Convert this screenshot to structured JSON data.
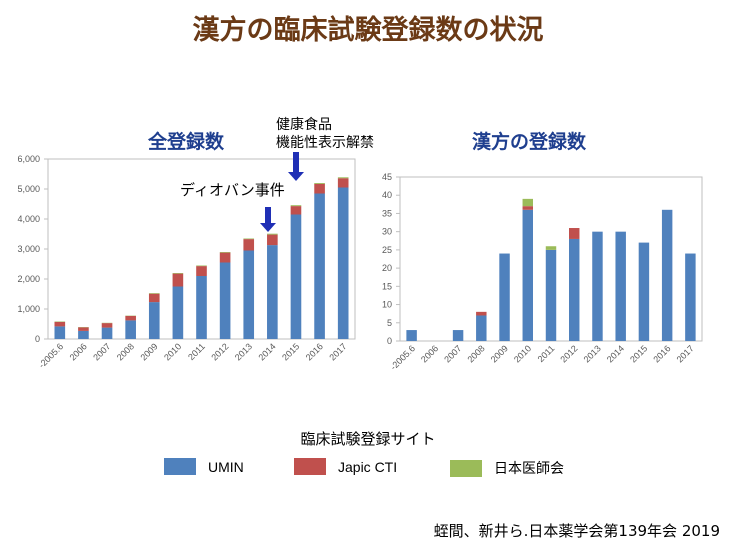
{
  "page_title": "漢方の臨床試験登録数の状況",
  "legend_title": "臨床試験登録サイト",
  "citation": "蛭間、新井ら.日本薬学会第139年会 2019",
  "annotations": {
    "health_food_line1": "健康食品",
    "health_food_line2": "機能性表示解禁",
    "diovan": "ディオバン事件"
  },
  "colors": {
    "UMIN": "#4f81bd",
    "Japic CTI": "#c0504d",
    "日本医師会": "#9bbb59",
    "axis": "#bfbfbf",
    "arrow": "#1f2fb5"
  },
  "legend": [
    {
      "name": "UMIN",
      "color": "#4f81bd"
    },
    {
      "name": "Japic CTI",
      "color": "#c0504d"
    },
    {
      "name": "日本医師会",
      "color": "#9bbb59"
    }
  ],
  "chart_data": [
    {
      "type": "bar",
      "stacked": true,
      "title": "全登録数",
      "categories": [
        "-2005.6",
        "2006",
        "2007",
        "2008",
        "2009",
        "2010",
        "2011",
        "2012",
        "2013",
        "2014",
        "2015",
        "2016",
        "2017"
      ],
      "ylim": [
        0,
        6000
      ],
      "yticks": [
        0,
        1000,
        2000,
        3000,
        4000,
        5000,
        6000
      ],
      "ytick_labels": [
        "0",
        "1,000",
        "2,000",
        "3,000",
        "4,000",
        "5,000",
        "6,000"
      ],
      "series": [
        {
          "name": "UMIN",
          "values": [
            420,
            270,
            380,
            620,
            1230,
            1750,
            2100,
            2550,
            2950,
            3130,
            4150,
            4850,
            5050
          ]
        },
        {
          "name": "Japic CTI",
          "values": [
            150,
            120,
            150,
            150,
            280,
            430,
            330,
            330,
            380,
            350,
            280,
            320,
            310
          ]
        },
        {
          "name": "日本医師会",
          "values": [
            15,
            10,
            10,
            10,
            20,
            20,
            20,
            20,
            20,
            30,
            30,
            30,
            30
          ]
        }
      ]
    },
    {
      "type": "bar",
      "stacked": true,
      "title": "漢方の登録数",
      "categories": [
        "-2005.6",
        "2006",
        "2007",
        "2008",
        "2009",
        "2010",
        "2011",
        "2012",
        "2013",
        "2014",
        "2015",
        "2016",
        "2017"
      ],
      "ylim": [
        0,
        45
      ],
      "yticks": [
        0,
        5,
        10,
        15,
        20,
        25,
        30,
        35,
        40,
        45
      ],
      "ytick_labels": [
        "0",
        "5",
        "10",
        "15",
        "20",
        "25",
        "30",
        "35",
        "40",
        "45"
      ],
      "series": [
        {
          "name": "UMIN",
          "values": [
            3,
            0,
            3,
            7,
            24,
            36,
            25,
            28,
            30,
            30,
            27,
            36,
            24
          ]
        },
        {
          "name": "Japic CTI",
          "values": [
            0,
            0,
            0,
            1,
            0,
            1,
            0,
            3,
            0,
            0,
            0,
            0,
            0
          ]
        },
        {
          "name": "日本医師会",
          "values": [
            0,
            0,
            0,
            0,
            0,
            2,
            1,
            0,
            0,
            0,
            0,
            0,
            0
          ]
        }
      ]
    }
  ]
}
